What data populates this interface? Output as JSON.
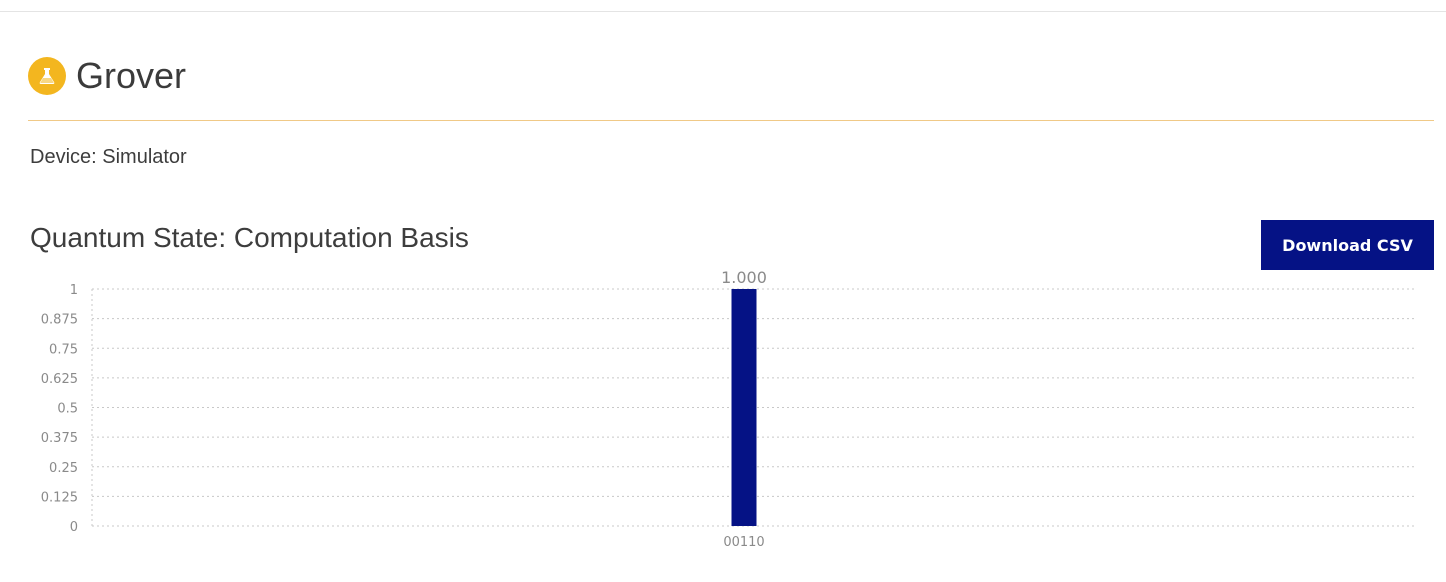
{
  "header": {
    "title": "Grover",
    "icon": "flask-icon",
    "badge_color": "#f3b61f"
  },
  "device": {
    "label": "Device: Simulator"
  },
  "section": {
    "title": "Quantum State: Computation Basis"
  },
  "toolbar": {
    "download_label": "Download CSV",
    "accent": "#051285"
  },
  "chart_data": {
    "type": "bar",
    "categories": [
      "00110"
    ],
    "values": [
      1.0
    ],
    "data_labels": [
      "1.000"
    ],
    "yticks": [
      "0",
      "0.125",
      "0.25",
      "0.375",
      "0.5",
      "0.625",
      "0.75",
      "0.875",
      "1"
    ],
    "ylim": [
      0,
      1
    ],
    "grid": true,
    "bar_color": "#051285"
  }
}
